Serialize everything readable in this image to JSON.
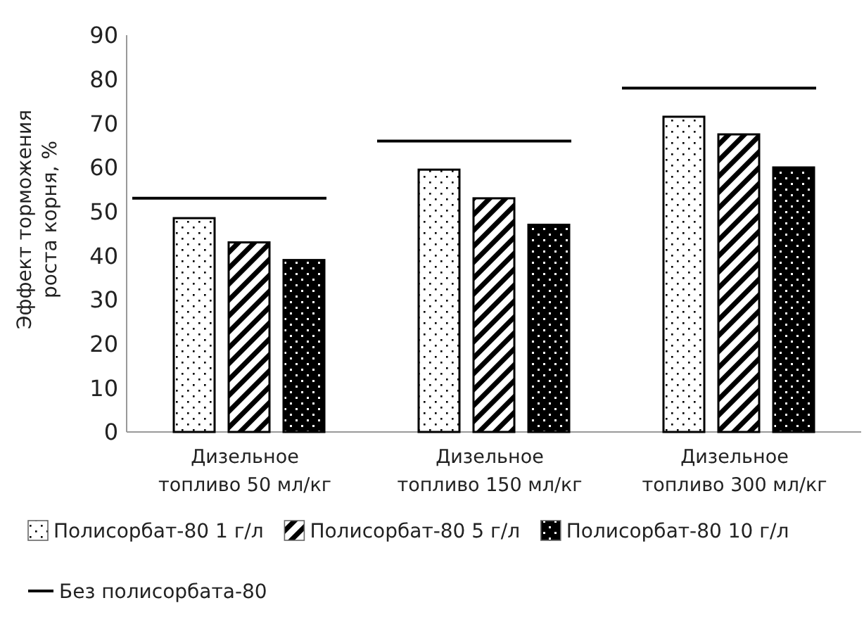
{
  "chart_data": {
    "type": "bar",
    "ylabel": "Эффект торможения роста корня, %",
    "categories": [
      "Дизельное топливо 50 мл/кг",
      "Дизельное топливо 150 мл/кг",
      "Дизельное топливо 300 мл/кг"
    ],
    "series": [
      {
        "name": "Полисорбат-80 1 г/л",
        "color": "#ffffff",
        "values": [
          48.5,
          59.5,
          71.5
        ]
      },
      {
        "name": "Полисорбат-80 5 г/л",
        "color": "#ffffff",
        "values": [
          43,
          53,
          67.5
        ]
      },
      {
        "name": "Полисорбат-80 10 г/л",
        "color": "#000000",
        "values": [
          39,
          47,
          60
        ]
      }
    ],
    "ref_lines": [
      {
        "axis": "y",
        "value": 53,
        "label": "Без полисорбата-80",
        "color": "#000000"
      },
      {
        "axis": "y",
        "value": 66,
        "color": "#000000"
      },
      {
        "axis": "y",
        "value": 78,
        "color": "#000000"
      }
    ],
    "ylim": [
      0,
      90
    ],
    "yticks": [
      0,
      10,
      20,
      30,
      40,
      50,
      60,
      70,
      80,
      90
    ],
    "grid": false,
    "legend": "bottom"
  }
}
